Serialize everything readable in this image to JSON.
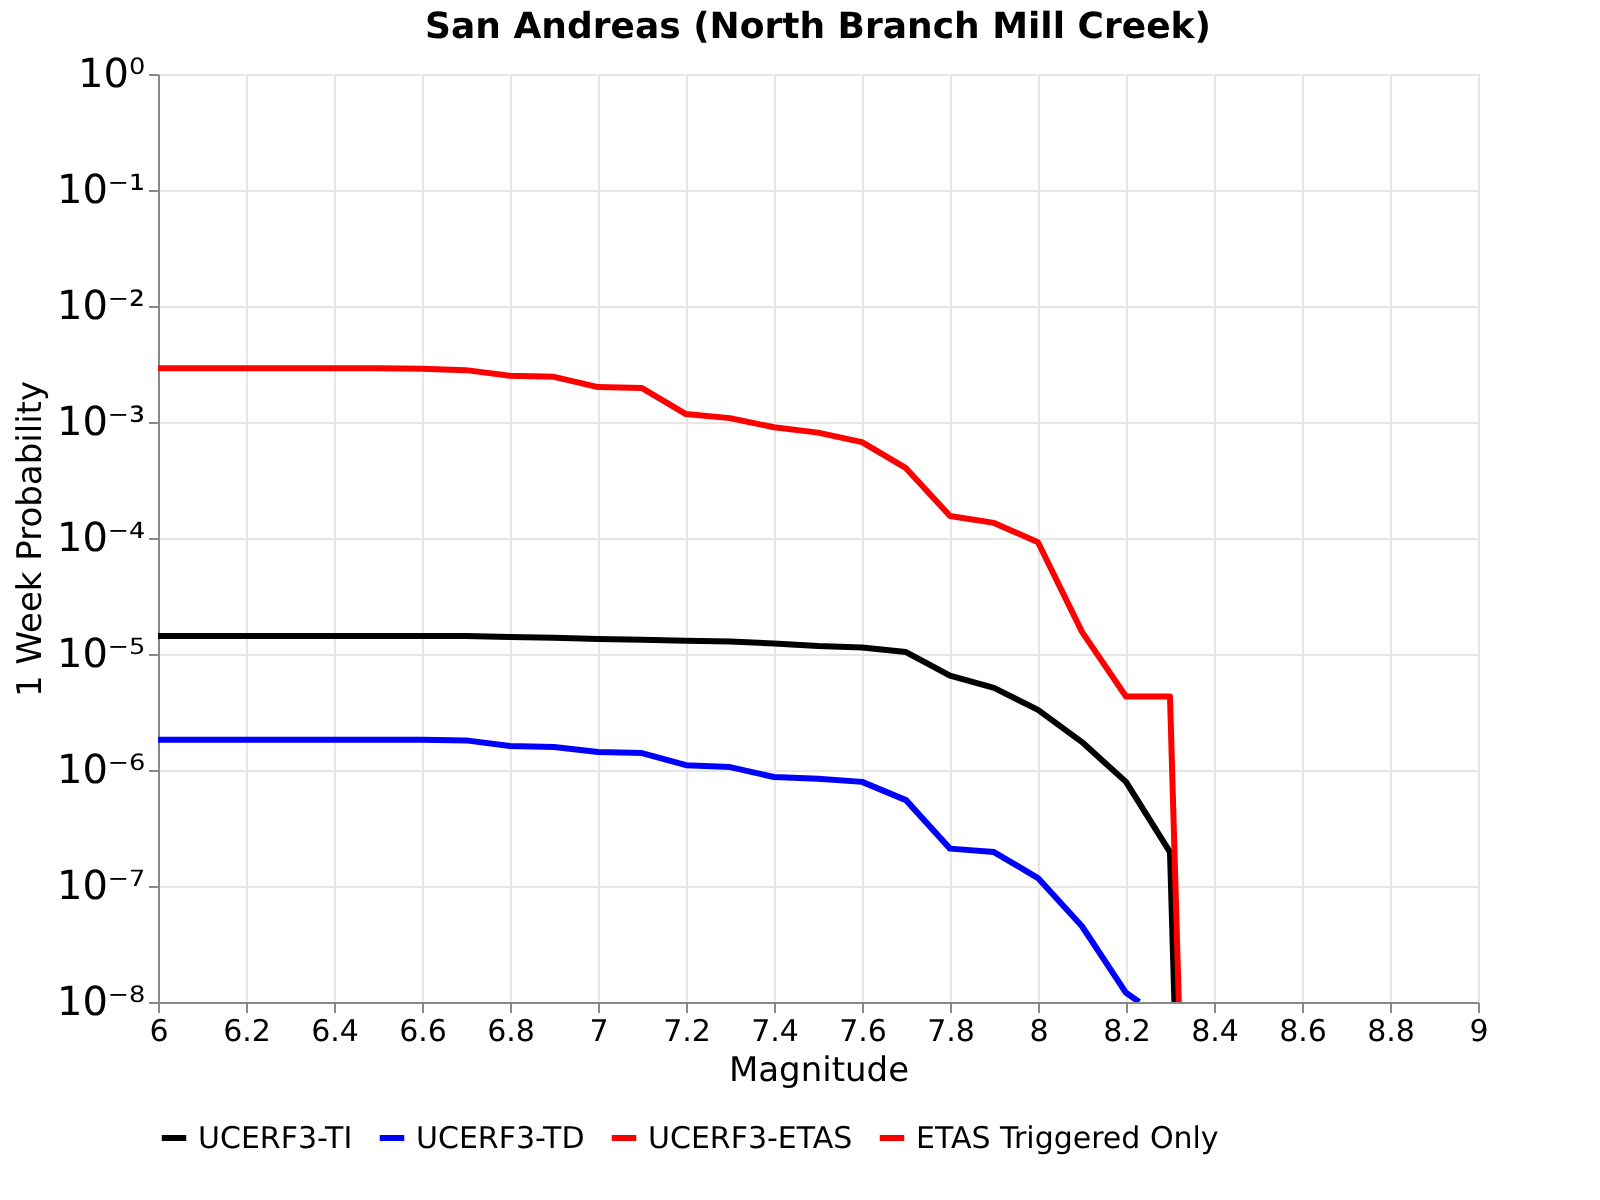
{
  "chart_data": {
    "type": "line",
    "title": "San Andreas (North Branch Mill Creek)",
    "xlabel": "Magnitude",
    "ylabel": "1 Week Probability",
    "log": "y",
    "grid": true,
    "legend": "bottom",
    "line_style": "solid",
    "marker": "none",
    "xlim": [
      6,
      9
    ],
    "xticks": [
      6,
      6.2,
      6.4,
      6.6,
      6.8,
      7,
      7.2,
      7.4,
      7.6,
      7.8,
      8,
      8.2,
      8.4,
      8.6,
      8.8,
      9
    ],
    "ylim": [
      1e-08,
      1
    ],
    "yticks": [
      {
        "value": 1e-08,
        "label": "10⁻⁸"
      },
      {
        "value": 1e-07,
        "label": "10⁻⁷"
      },
      {
        "value": 1e-06,
        "label": "10⁻⁶"
      },
      {
        "value": 1e-05,
        "label": "10⁻⁵"
      },
      {
        "value": 0.0001,
        "label": "10⁻⁴"
      },
      {
        "value": 0.001,
        "label": "10⁻³"
      },
      {
        "value": 0.01,
        "label": "10⁻²"
      },
      {
        "value": 0.1,
        "label": "10⁻¹"
      },
      {
        "value": 1,
        "label": "10⁰"
      }
    ],
    "series": [
      {
        "name": "UCERF3-TI",
        "color": "#000000",
        "x": [
          6,
          6.1,
          6.2,
          6.3,
          6.4,
          6.5,
          6.6,
          6.7,
          6.8,
          6.9,
          7,
          7.1,
          7.2,
          7.3,
          7.4,
          7.5,
          7.6,
          7.7,
          7.8,
          7.9,
          8,
          8.1,
          8.2,
          8.3,
          8.31
        ],
        "values": [
          1.43e-05,
          1.43e-05,
          1.43e-05,
          1.43e-05,
          1.43e-05,
          1.43e-05,
          1.43e-05,
          1.43e-05,
          1.4e-05,
          1.38e-05,
          1.35e-05,
          1.33e-05,
          1.3e-05,
          1.28e-05,
          1.23e-05,
          1.17e-05,
          1.14e-05,
          1.04e-05,
          6.5e-06,
          5.1e-06,
          3.3e-06,
          1.74e-06,
          7.9e-07,
          1.96e-07,
          1e-08
        ]
      },
      {
        "name": "UCERF3-TD",
        "color": "#0000ff",
        "x": [
          6,
          6.1,
          6.2,
          6.3,
          6.4,
          6.5,
          6.6,
          6.7,
          6.8,
          6.9,
          7,
          7.1,
          7.2,
          7.3,
          7.4,
          7.5,
          7.6,
          7.7,
          7.8,
          7.9,
          8,
          8.1,
          8.2,
          8.23
        ],
        "values": [
          1.82e-06,
          1.82e-06,
          1.82e-06,
          1.82e-06,
          1.82e-06,
          1.82e-06,
          1.82e-06,
          1.8e-06,
          1.61e-06,
          1.58e-06,
          1.43e-06,
          1.4e-06,
          1.1e-06,
          1.06e-06,
          8.7e-07,
          8.4e-07,
          7.9e-07,
          5.5e-07,
          2.1e-07,
          1.96e-07,
          1.17e-07,
          4.5e-08,
          1.2e-08,
          1e-08
        ]
      },
      {
        "name": "UCERF3-ETAS",
        "color": "#ff0000",
        "x": [
          6,
          6.1,
          6.2,
          6.3,
          6.4,
          6.5,
          6.6,
          6.7,
          6.8,
          6.9,
          7,
          7.1,
          7.2,
          7.3,
          7.4,
          7.5,
          7.6,
          7.7,
          7.8,
          7.9,
          8,
          8.1,
          8.2,
          8.3,
          8.32
        ],
        "values": [
          0.0029,
          0.0029,
          0.0029,
          0.0029,
          0.0029,
          0.0029,
          0.00288,
          0.0028,
          0.0025,
          0.00245,
          0.002,
          0.00196,
          0.00117,
          0.00108,
          0.0009,
          0.00081,
          0.00067,
          0.0004,
          0.000155,
          0.000135,
          9.2e-05,
          1.55e-05,
          4.3e-06,
          4.3e-06,
          1e-08
        ]
      },
      {
        "name": "ETAS Triggered Only",
        "color": "#ff0000",
        "values": [
          null
        ]
      }
    ]
  }
}
